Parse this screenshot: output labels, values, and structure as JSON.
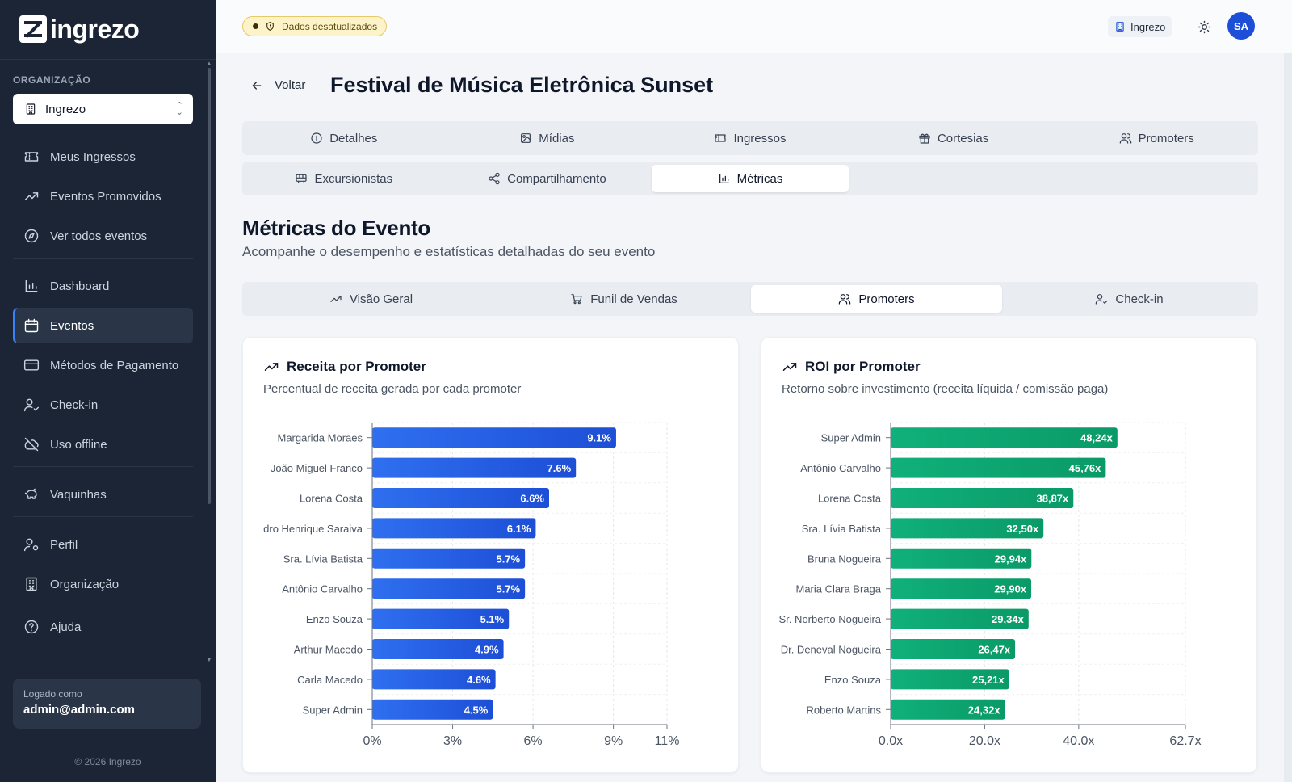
{
  "sidebar": {
    "logo_text": "ingrezo",
    "org_label": "ORGANIZAÇÃO",
    "org_selected": "Ingrezo",
    "items": [
      {
        "label": "Meus Ingressos",
        "icon": "ticket-icon"
      },
      {
        "label": "Eventos Promovidos",
        "icon": "trending-up-icon"
      },
      {
        "label": "Ver todos eventos",
        "icon": "compass-icon"
      },
      {
        "label": "Dashboard",
        "icon": "bar-chart-icon"
      },
      {
        "label": "Eventos",
        "icon": "calendar-icon",
        "active": true
      },
      {
        "label": "Métodos de Pagamento",
        "icon": "credit-card-icon"
      },
      {
        "label": "Check-in",
        "icon": "user-check-icon"
      },
      {
        "label": "Uso offline",
        "icon": "cloud-off-icon"
      },
      {
        "label": "Vaquinhas",
        "icon": "piggy-bank-icon"
      },
      {
        "label": "Perfil",
        "icon": "user-cog-icon"
      },
      {
        "label": "Organização",
        "icon": "building-icon"
      },
      {
        "label": "Ajuda",
        "icon": "help-circle-icon"
      }
    ],
    "logged_label": "Logado como",
    "logged_email": "admin@admin.com",
    "copyright": "© 2026 Ingrezo"
  },
  "topbar": {
    "stale_badge": "Dados desatualizados",
    "org_chip": "Ingrezo",
    "avatar_initials": "SA"
  },
  "header": {
    "back_label": "Voltar",
    "title": "Festival de Música Eletrônica Sunset"
  },
  "tabs": [
    {
      "label": "Detalhes",
      "icon": "info-icon"
    },
    {
      "label": "Mídias",
      "icon": "image-icon"
    },
    {
      "label": "Ingressos",
      "icon": "ticket-icon"
    },
    {
      "label": "Cortesias",
      "icon": "gift-icon"
    },
    {
      "label": "Promoters",
      "icon": "users-icon"
    },
    {
      "label": "Excursionistas",
      "icon": "bus-icon"
    },
    {
      "label": "Compartilhamento",
      "icon": "share-icon"
    },
    {
      "label": "Métricas",
      "icon": "bar-chart-icon",
      "active": true
    }
  ],
  "metrics": {
    "title": "Métricas do Evento",
    "subtitle": "Acompanhe o desempenho e estatísticas detalhadas do seu evento",
    "subtabs": [
      {
        "label": "Visão Geral",
        "icon": "trending-up-icon"
      },
      {
        "label": "Funil de Vendas",
        "icon": "cart-icon"
      },
      {
        "label": "Promoters",
        "icon": "users-icon",
        "active": true
      },
      {
        "label": "Check-in",
        "icon": "user-check-icon"
      }
    ]
  },
  "colors": {
    "revenue_bar": "#2f6ff0",
    "roi_bar": "#10b07a",
    "sidebar_bg": "#1c2535"
  },
  "chart_data": [
    {
      "type": "bar",
      "orientation": "horizontal",
      "title": "Receita por Promoter",
      "subtitle": "Percentual de receita gerada por cada promoter",
      "categories": [
        "Margarida Moraes",
        "João Miguel Franco",
        "Lorena Costa",
        "dro Henrique Saraiva",
        "Sra. Lívia Batista",
        "Antônio Carvalho",
        "Enzo Souza",
        "Arthur Macedo",
        "Carla Macedo",
        "Super Admin"
      ],
      "values": [
        9.1,
        7.6,
        6.6,
        6.1,
        5.7,
        5.7,
        5.1,
        4.9,
        4.6,
        4.5
      ],
      "value_labels": [
        "9.1%",
        "7.6%",
        "6.6%",
        "6.1%",
        "5.7%",
        "5.7%",
        "5.1%",
        "4.9%",
        "4.6%",
        "4.5%"
      ],
      "xticks": [
        0,
        3,
        6,
        9,
        11
      ],
      "xtick_labels": [
        "0%",
        "3%",
        "6%",
        "9%",
        "11%"
      ],
      "xlim": [
        0,
        11
      ],
      "grid": true,
      "xlabel": "",
      "ylabel": ""
    },
    {
      "type": "bar",
      "orientation": "horizontal",
      "title": "ROI por Promoter",
      "subtitle": "Retorno sobre investimento (receita líquida / comissão paga)",
      "categories": [
        "Super Admin",
        "Antônio Carvalho",
        "Lorena Costa",
        "Sra. Lívia Batista",
        "Bruna Nogueira",
        "Maria Clara Braga",
        "Sr. Norberto Nogueira",
        "Dr. Deneval Nogueira",
        "Enzo Souza",
        "Roberto Martins"
      ],
      "values": [
        48.24,
        45.76,
        38.87,
        32.5,
        29.94,
        29.9,
        29.34,
        26.47,
        25.21,
        24.32
      ],
      "value_labels": [
        "48,24x",
        "45,76x",
        "38,87x",
        "32,50x",
        "29,94x",
        "29,90x",
        "29,34x",
        "26,47x",
        "25,21x",
        "24,32x"
      ],
      "xticks": [
        0,
        20,
        40,
        62.7
      ],
      "xtick_labels": [
        "0.0x",
        "20.0x",
        "40.0x",
        "62.7x"
      ],
      "xlim": [
        0,
        62.7
      ],
      "grid": true,
      "xlabel": "",
      "ylabel": ""
    }
  ]
}
